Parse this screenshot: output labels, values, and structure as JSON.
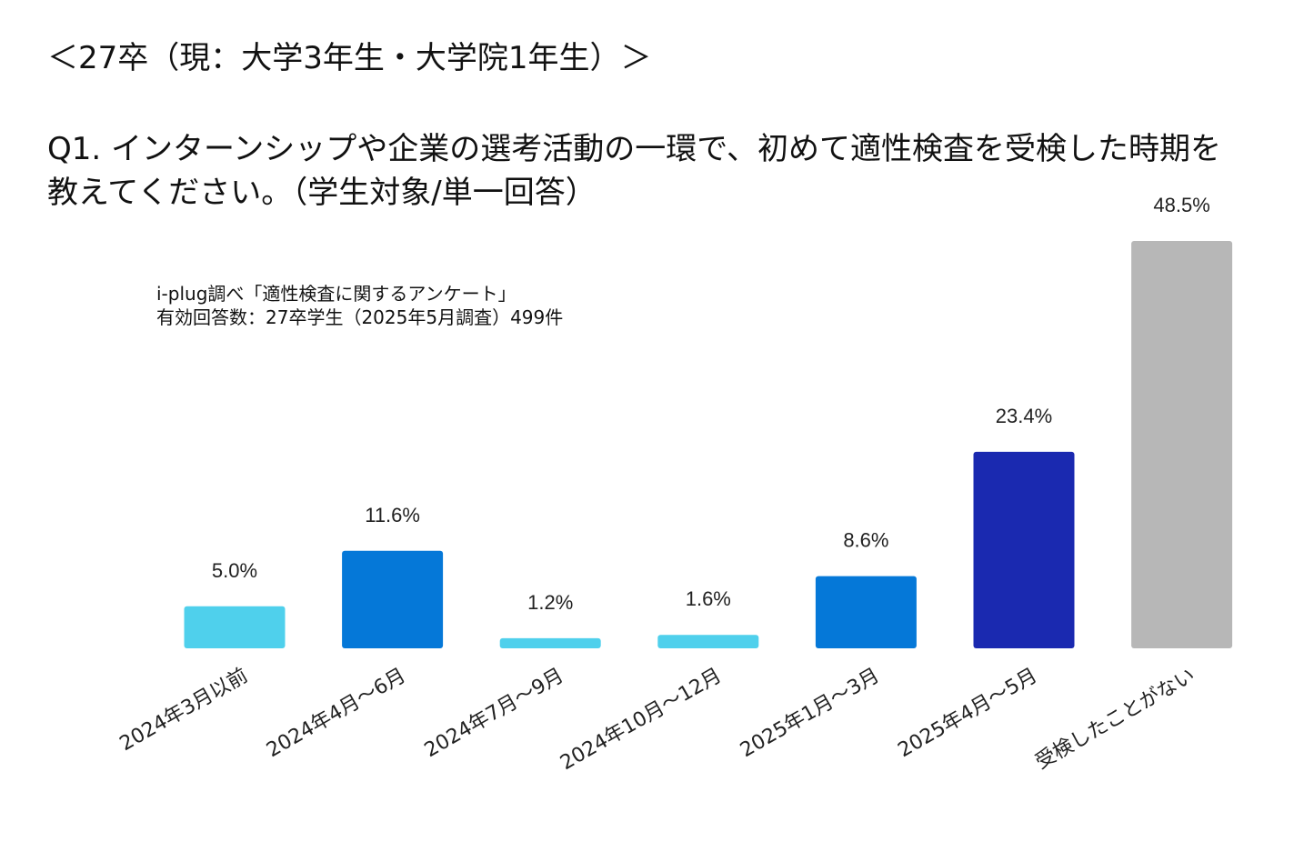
{
  "header": "＜27卒（現：大学3年生・大学院1年生）＞",
  "question": "Q1. インターンシップや企業の選考活動の一環で、初めて適性検査を受検した時期を教えてください。（学生対象/単一回答）",
  "source": {
    "line1": "i-plug調べ「適性検査に関するアンケート」",
    "line2": "有効回答数：27卒学生（2025年5月調査）499件"
  },
  "chart_data": {
    "type": "bar",
    "title": "Q1. インターンシップや企業の選考活動の一環で、初めて適性検査を受検した時期を教えてください。（学生対象/単一回答）",
    "categories": [
      "2024年3月以前",
      "2024年4月～6月",
      "2024年7月～9月",
      "2024年10月～12月",
      "2025年1月～3月",
      "2025年4月～5月",
      "受検したことがない"
    ],
    "values": [
      5.0,
      11.6,
      1.2,
      1.6,
      8.6,
      23.4,
      48.5
    ],
    "value_labels": [
      "5.0%",
      "11.6%",
      "1.2%",
      "1.6%",
      "8.6%",
      "23.4%",
      "48.5%"
    ],
    "colors": [
      "#4fd0ec",
      "#0578d8",
      "#4fd0ec",
      "#4fd0ec",
      "#0578d8",
      "#1a29b0",
      "#b7b7b7"
    ],
    "xlabel": "",
    "ylabel": "",
    "ylim": [
      0,
      48.5
    ],
    "grid": false,
    "legend": "none"
  }
}
